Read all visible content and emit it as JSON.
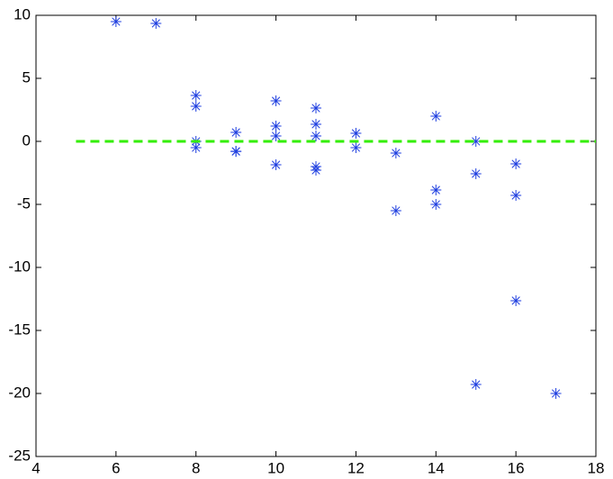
{
  "chart_data": {
    "type": "scatter",
    "series": [
      {
        "type": "scatter",
        "color": "#1f3fe0",
        "marker": "asterisk",
        "x": [
          6,
          7,
          8,
          8,
          8,
          8,
          9,
          9,
          9,
          10,
          10,
          10,
          10,
          11,
          11,
          11,
          11,
          11,
          12,
          12,
          13,
          13,
          14,
          14,
          14,
          15,
          15,
          15,
          16,
          16,
          16,
          17
        ],
        "values": [
          9.5,
          9.36,
          3.64,
          2.79,
          0,
          -0.5,
          0.71,
          -0.79,
          -0.8,
          3.21,
          1.21,
          0.43,
          -1.86,
          2.64,
          1.36,
          0.43,
          -2.0,
          -2.29,
          0.64,
          -0.5,
          -0.93,
          -5.5,
          2.0,
          -3.86,
          -5.0,
          0,
          -2.57,
          -19.29,
          -1.79,
          -4.29,
          -12.64,
          -20.0
        ]
      },
      {
        "type": "line",
        "color": "#33ee00",
        "linestyle": "dashed",
        "x": [
          5,
          18
        ],
        "values": [
          0,
          0
        ]
      }
    ],
    "xlim": [
      4,
      18
    ],
    "xticks": [
      4,
      6,
      8,
      10,
      12,
      14,
      16,
      18
    ],
    "ylim": [
      -25,
      10
    ],
    "yticks": [
      -25,
      -20,
      -15,
      -10,
      -5,
      0,
      5,
      10
    ]
  }
}
